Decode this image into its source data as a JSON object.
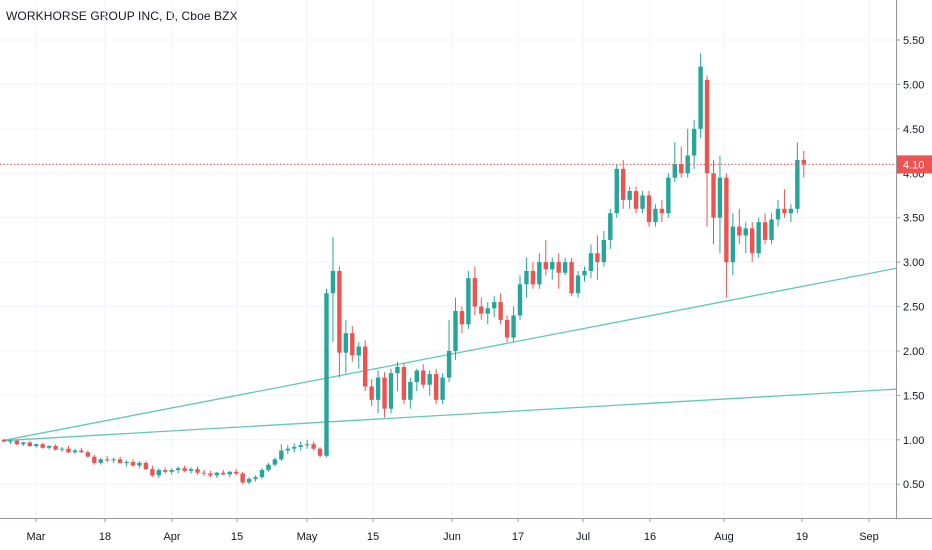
{
  "chart_data": {
    "type": "candlestick",
    "title": "WORKHORSE GROUP INC, D, Cboe BZX",
    "y_ticks": [
      "0.50",
      "1.00",
      "1.50",
      "2.00",
      "2.50",
      "3.00",
      "3.50",
      "4.00",
      "4.50",
      "5.00",
      "5.50"
    ],
    "ylim": [
      0.12,
      5.95
    ],
    "x_ticks": [
      "Mar",
      "18",
      "Apr",
      "15",
      "May",
      "15",
      "Jun",
      "17",
      "Jul",
      "16",
      "Aug",
      "19",
      "Sep"
    ],
    "last_price": "4.10",
    "colors": {
      "up": "#26a69a",
      "down": "#ef5350",
      "trendline": "#5fc9b7",
      "price_line": "#ef5350"
    },
    "bars": [
      [
        1.0,
        1.01,
        0.97,
        0.98
      ],
      [
        0.98,
        1.0,
        0.95,
        0.99
      ],
      [
        0.99,
        1.0,
        0.94,
        0.95
      ],
      [
        0.95,
        0.98,
        0.93,
        0.97
      ],
      [
        0.97,
        0.99,
        0.92,
        0.93
      ],
      [
        0.93,
        0.96,
        0.91,
        0.95
      ],
      [
        0.95,
        0.97,
        0.9,
        0.91
      ],
      [
        0.91,
        0.94,
        0.89,
        0.93
      ],
      [
        0.93,
        0.95,
        0.88,
        0.89
      ],
      [
        0.89,
        0.92,
        0.86,
        0.9
      ],
      [
        0.9,
        0.93,
        0.85,
        0.86
      ],
      [
        0.86,
        0.9,
        0.84,
        0.88
      ],
      [
        0.88,
        0.91,
        0.85,
        0.86
      ],
      [
        0.86,
        0.88,
        0.8,
        0.81
      ],
      [
        0.81,
        0.83,
        0.72,
        0.74
      ],
      [
        0.74,
        0.8,
        0.72,
        0.78
      ],
      [
        0.78,
        0.82,
        0.75,
        0.77
      ],
      [
        0.77,
        0.8,
        0.74,
        0.78
      ],
      [
        0.78,
        0.81,
        0.73,
        0.74
      ],
      [
        0.74,
        0.77,
        0.7,
        0.75
      ],
      [
        0.75,
        0.78,
        0.7,
        0.71
      ],
      [
        0.71,
        0.76,
        0.68,
        0.74
      ],
      [
        0.74,
        0.76,
        0.66,
        0.67
      ],
      [
        0.67,
        0.71,
        0.58,
        0.6
      ],
      [
        0.6,
        0.68,
        0.57,
        0.66
      ],
      [
        0.66,
        0.69,
        0.62,
        0.64
      ],
      [
        0.64,
        0.68,
        0.61,
        0.66
      ],
      [
        0.66,
        0.7,
        0.62,
        0.68
      ],
      [
        0.68,
        0.71,
        0.64,
        0.65
      ],
      [
        0.65,
        0.69,
        0.62,
        0.67
      ],
      [
        0.67,
        0.7,
        0.61,
        0.63
      ],
      [
        0.63,
        0.66,
        0.59,
        0.62
      ],
      [
        0.62,
        0.65,
        0.58,
        0.6
      ],
      [
        0.6,
        0.64,
        0.57,
        0.63
      ],
      [
        0.63,
        0.66,
        0.6,
        0.61
      ],
      [
        0.61,
        0.65,
        0.58,
        0.64
      ],
      [
        0.64,
        0.67,
        0.6,
        0.62
      ],
      [
        0.62,
        0.64,
        0.5,
        0.52
      ],
      [
        0.52,
        0.58,
        0.5,
        0.56
      ],
      [
        0.56,
        0.6,
        0.53,
        0.58
      ],
      [
        0.58,
        0.68,
        0.56,
        0.66
      ],
      [
        0.66,
        0.74,
        0.64,
        0.72
      ],
      [
        0.72,
        0.8,
        0.7,
        0.78
      ],
      [
        0.78,
        0.95,
        0.76,
        0.88
      ],
      [
        0.88,
        0.94,
        0.84,
        0.9
      ],
      [
        0.9,
        0.96,
        0.86,
        0.92
      ],
      [
        0.92,
        0.98,
        0.88,
        0.94
      ],
      [
        0.94,
        1.0,
        0.9,
        0.95
      ],
      [
        0.95,
        0.98,
        0.88,
        0.9
      ],
      [
        0.9,
        0.92,
        0.8,
        0.82
      ],
      [
        0.82,
        2.7,
        0.8,
        2.65
      ],
      [
        2.65,
        3.28,
        2.1,
        2.9
      ],
      [
        2.9,
        2.95,
        1.7,
        1.98
      ],
      [
        1.98,
        2.35,
        1.75,
        2.2
      ],
      [
        2.2,
        2.28,
        1.88,
        1.95
      ],
      [
        1.95,
        2.1,
        1.8,
        2.05
      ],
      [
        2.05,
        2.12,
        1.55,
        1.6
      ],
      [
        1.6,
        1.68,
        1.38,
        1.45
      ],
      [
        1.45,
        1.78,
        1.3,
        1.7
      ],
      [
        1.7,
        1.76,
        1.25,
        1.35
      ],
      [
        1.35,
        1.8,
        1.3,
        1.75
      ],
      [
        1.75,
        1.88,
        1.55,
        1.82
      ],
      [
        1.82,
        1.86,
        1.4,
        1.45
      ],
      [
        1.45,
        1.7,
        1.35,
        1.65
      ],
      [
        1.65,
        1.8,
        1.55,
        1.78
      ],
      [
        1.78,
        1.85,
        1.58,
        1.62
      ],
      [
        1.62,
        1.78,
        1.5,
        1.74
      ],
      [
        1.74,
        1.8,
        1.4,
        1.45
      ],
      [
        1.45,
        1.75,
        1.4,
        1.7
      ],
      [
        1.7,
        2.35,
        1.65,
        2.0
      ],
      [
        2.0,
        2.6,
        1.9,
        2.45
      ],
      [
        2.45,
        2.5,
        2.2,
        2.3
      ],
      [
        2.3,
        2.9,
        2.25,
        2.82
      ],
      [
        2.82,
        2.95,
        2.4,
        2.5
      ],
      [
        2.5,
        2.6,
        2.35,
        2.42
      ],
      [
        2.42,
        2.55,
        2.3,
        2.48
      ],
      [
        2.48,
        2.62,
        2.38,
        2.55
      ],
      [
        2.55,
        2.65,
        2.3,
        2.35
      ],
      [
        2.35,
        2.4,
        2.1,
        2.15
      ],
      [
        2.15,
        2.5,
        2.1,
        2.4
      ],
      [
        2.4,
        2.85,
        2.35,
        2.75
      ],
      [
        2.75,
        3.05,
        2.6,
        2.9
      ],
      [
        2.9,
        3.0,
        2.7,
        2.75
      ],
      [
        2.75,
        3.1,
        2.7,
        3.0
      ],
      [
        3.0,
        3.25,
        2.85,
        2.92
      ],
      [
        2.92,
        3.05,
        2.8,
        3.0
      ],
      [
        3.0,
        3.1,
        2.7,
        2.88
      ],
      [
        2.88,
        3.05,
        2.85,
        3.0
      ],
      [
        3.0,
        3.05,
        2.62,
        2.65
      ],
      [
        2.65,
        2.9,
        2.6,
        2.85
      ],
      [
        2.85,
        2.95,
        2.78,
        2.9
      ],
      [
        2.9,
        3.2,
        2.82,
        3.1
      ],
      [
        3.1,
        3.3,
        2.8,
        3.0
      ],
      [
        3.0,
        3.35,
        2.95,
        3.25
      ],
      [
        3.25,
        3.6,
        3.15,
        3.55
      ],
      [
        3.55,
        4.1,
        3.5,
        4.05
      ],
      [
        4.05,
        4.15,
        3.6,
        3.7
      ],
      [
        3.7,
        3.85,
        3.6,
        3.8
      ],
      [
        3.8,
        3.85,
        3.55,
        3.6
      ],
      [
        3.6,
        3.8,
        3.55,
        3.75
      ],
      [
        3.75,
        3.8,
        3.4,
        3.45
      ],
      [
        3.45,
        3.65,
        3.4,
        3.6
      ],
      [
        3.6,
        3.7,
        3.45,
        3.55
      ],
      [
        3.55,
        4.0,
        3.5,
        3.95
      ],
      [
        3.95,
        4.35,
        3.9,
        4.1
      ],
      [
        4.1,
        4.3,
        3.95,
        4.0
      ],
      [
        4.0,
        4.5,
        3.95,
        4.2
      ],
      [
        4.2,
        4.6,
        4.05,
        4.5
      ],
      [
        4.5,
        5.35,
        4.4,
        5.2
      ],
      [
        5.05,
        5.1,
        3.4,
        4.0
      ],
      [
        4.0,
        4.15,
        3.2,
        3.5
      ],
      [
        3.5,
        4.2,
        3.1,
        3.95
      ],
      [
        3.95,
        4.0,
        2.6,
        3.0
      ],
      [
        3.0,
        3.55,
        2.85,
        3.4
      ],
      [
        3.4,
        3.6,
        3.2,
        3.3
      ],
      [
        3.3,
        3.45,
        3.1,
        3.38
      ],
      [
        3.38,
        3.45,
        3.0,
        3.1
      ],
      [
        3.1,
        3.5,
        3.05,
        3.45
      ],
      [
        3.45,
        3.55,
        3.2,
        3.25
      ],
      [
        3.25,
        3.55,
        3.2,
        3.48
      ],
      [
        3.48,
        3.7,
        3.4,
        3.6
      ],
      [
        3.6,
        3.82,
        3.5,
        3.55
      ],
      [
        3.55,
        3.65,
        3.45,
        3.6
      ],
      [
        3.6,
        4.35,
        3.55,
        4.15
      ],
      [
        4.15,
        4.25,
        3.95,
        4.1
      ]
    ],
    "trendlines": [
      {
        "from": [
          0,
          0.99
        ],
        "to": [
          999,
          2.93
        ]
      },
      {
        "from": [
          0,
          0.99
        ],
        "to": [
          999,
          1.57
        ]
      }
    ]
  }
}
